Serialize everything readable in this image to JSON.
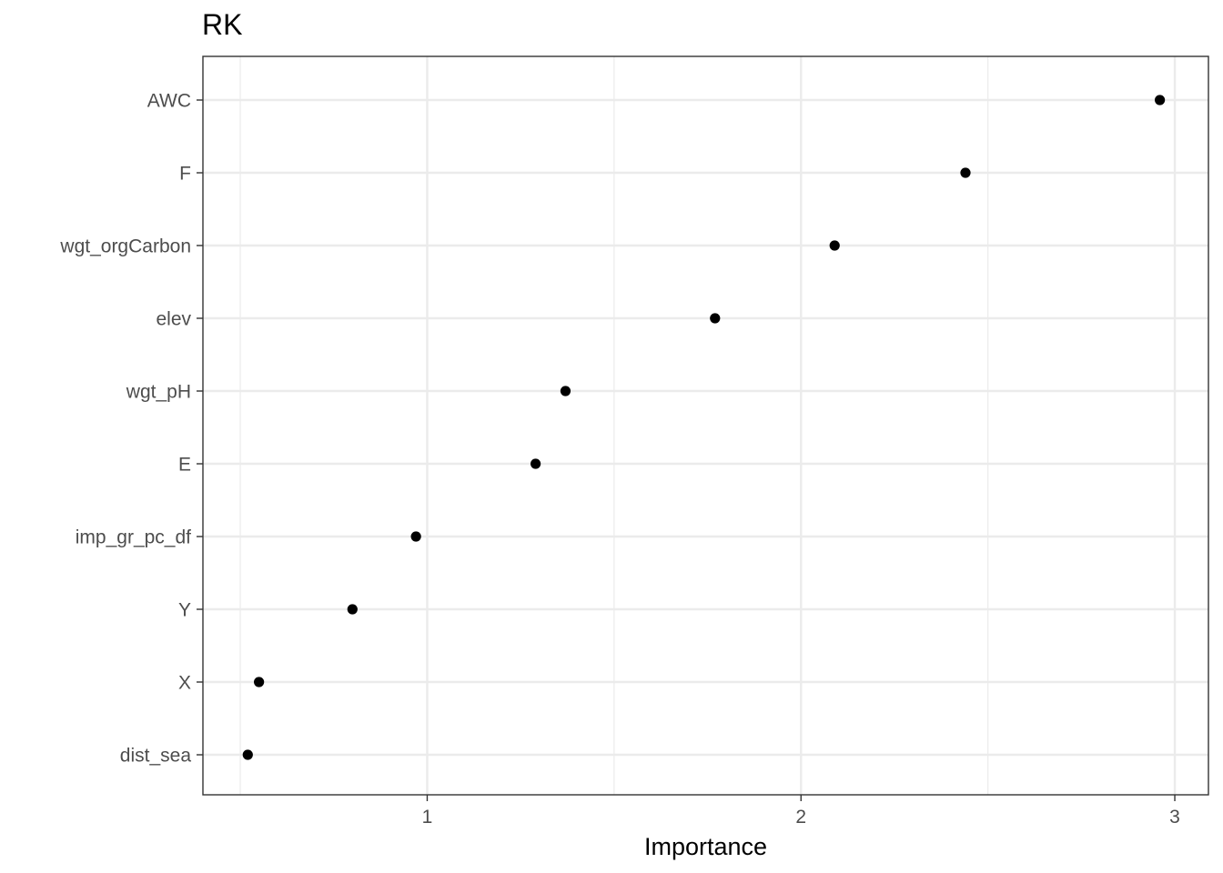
{
  "chart_data": {
    "type": "scatter",
    "title": "RK",
    "xlabel": "Importance",
    "ylabel": "",
    "xlim": [
      0.4,
      3.09
    ],
    "xticks": [
      1,
      2,
      3
    ],
    "xtick_labels": [
      "1",
      "2",
      "3"
    ],
    "minor_xticks": [
      0.5,
      1.5,
      2.5
    ],
    "grid": true,
    "categories": [
      "AWC",
      "F",
      "wgt_orgCarbon",
      "elev",
      "wgt_pH",
      "E",
      "imp_gr_pc_df",
      "Y",
      "X",
      "dist_sea"
    ],
    "values": [
      2.96,
      2.44,
      2.09,
      1.77,
      1.37,
      1.29,
      0.97,
      0.8,
      0.55,
      0.52
    ]
  }
}
